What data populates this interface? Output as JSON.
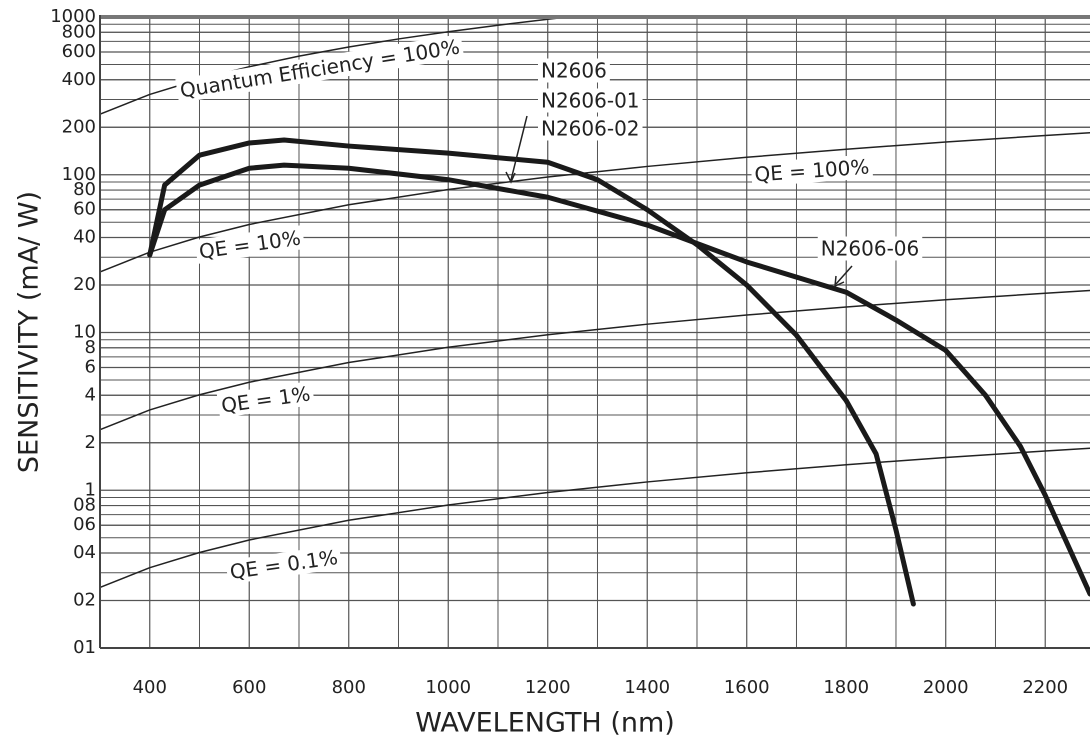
{
  "chart_data": {
    "type": "line",
    "x_label": "WAVELENGTH (nm)",
    "y_label": "SENSITIVITY (mA/ W)",
    "log_y": true,
    "grid": true,
    "minor_grid": true,
    "xlim": [
      300,
      2290
    ],
    "ylim": [
      0.1,
      1000
    ],
    "xticks": [
      400,
      600,
      800,
      1000,
      1200,
      1400,
      1600,
      1800,
      2000,
      2200
    ],
    "yticks": [
      1000,
      800,
      600,
      400,
      200,
      100,
      80,
      60,
      40,
      20,
      10,
      8,
      6,
      4,
      2,
      1,
      {
        "value": 0.8,
        "label": "08"
      },
      {
        "value": 0.6,
        "label": "06"
      },
      {
        "value": 0.4,
        "label": "04"
      },
      {
        "value": 0.2,
        "label": "02"
      },
      {
        "value": 0.1,
        "label": "01"
      }
    ],
    "series": [
      {
        "labels": [
          "Quantum Efficiency = 100%"
        ],
        "color": "#222222",
        "width": 1.5,
        "x": [
          300,
          400,
          500,
          600,
          700,
          800,
          900,
          1000,
          1100,
          1200,
          1240
        ],
        "values": [
          242,
          323,
          403,
          484,
          565,
          645,
          726,
          806,
          887,
          968,
          1000
        ]
      },
      {
        "labels": [
          "QE = 10%",
          "QE = 100%"
        ],
        "color": "#222222",
        "width": 1.5,
        "x": [
          300,
          400,
          500,
          600,
          800,
          1000,
          1200,
          1400,
          1600,
          1800,
          2000,
          2200,
          2290
        ],
        "values": [
          24.2,
          32.3,
          40.3,
          48.4,
          64.5,
          80.6,
          96.8,
          112.9,
          129,
          145.2,
          161.3,
          177.4,
          184.7
        ]
      },
      {
        "labels": [
          "QE = 1%"
        ],
        "color": "#222222",
        "width": 1.5,
        "x": [
          300,
          400,
          500,
          600,
          800,
          1000,
          1200,
          1400,
          1600,
          1800,
          2000,
          2200,
          2290
        ],
        "values": [
          2.42,
          3.23,
          4.03,
          4.84,
          6.45,
          8.06,
          9.68,
          11.29,
          12.9,
          14.52,
          16.13,
          17.74,
          18.47
        ]
      },
      {
        "labels": [
          "QE = 0.1%"
        ],
        "color": "#222222",
        "width": 1.5,
        "x": [
          300,
          400,
          500,
          600,
          800,
          1000,
          1200,
          1400,
          1600,
          1800,
          2000,
          2200,
          2290
        ],
        "values": [
          0.242,
          0.323,
          0.403,
          0.484,
          0.645,
          0.806,
          0.968,
          1.129,
          1.29,
          1.452,
          1.613,
          1.774,
          1.847
        ]
      },
      {
        "labels": [
          "N2606-06"
        ],
        "color": "#1a1a1a",
        "width": 5,
        "x": [
          400,
          430,
          500,
          600,
          670,
          800,
          1000,
          1200,
          1400,
          1600,
          1800,
          1900,
          2000,
          2080,
          2150,
          2200,
          2290
        ],
        "values": [
          31,
          60,
          86,
          110,
          115,
          110,
          93,
          72,
          48,
          28,
          18,
          12,
          7.7,
          4.0,
          1.9,
          0.93,
          0.22
        ]
      },
      {
        "labels": [
          "N2606",
          "N2606-01",
          "N2606-02"
        ],
        "color": "#1a1a1a",
        "width": 5,
        "x": [
          400,
          430,
          500,
          600,
          670,
          800,
          1000,
          1200,
          1300,
          1400,
          1500,
          1600,
          1700,
          1800,
          1860,
          1900,
          1935
        ],
        "values": [
          31,
          86,
          133,
          159,
          166,
          152,
          137,
          120,
          93,
          60,
          36,
          20,
          9.6,
          3.7,
          1.7,
          0.56,
          0.19
        ]
      }
    ]
  }
}
